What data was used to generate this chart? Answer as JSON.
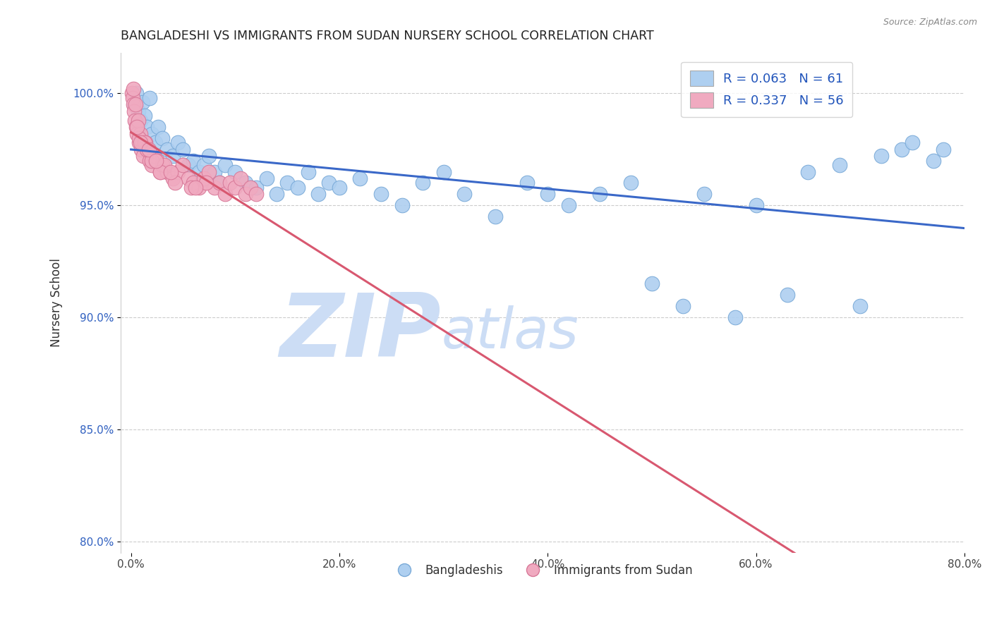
{
  "title": "BANGLADESHI VS IMMIGRANTS FROM SUDAN NURSERY SCHOOL CORRELATION CHART",
  "source": "Source: ZipAtlas.com",
  "xlabel_vals": [
    0.0,
    20.0,
    40.0,
    60.0,
    80.0
  ],
  "ylabel_vals": [
    80.0,
    85.0,
    90.0,
    95.0,
    100.0
  ],
  "xlim": [
    -1.0,
    80.0
  ],
  "ylim": [
    79.5,
    101.8
  ],
  "blue_R": 0.063,
  "blue_N": 61,
  "pink_R": 0.337,
  "pink_N": 56,
  "blue_color": "#aecff0",
  "pink_color": "#f0aac0",
  "blue_edge": "#7aaad8",
  "pink_edge": "#d87898",
  "trendline_blue": "#3a68c8",
  "trendline_pink": "#d85870",
  "watermark_zip": "ZIP",
  "watermark_atlas": "atlas",
  "watermark_color": "#ccddf5",
  "ylabel": "Nursery School",
  "legend_label_blue": "Bangladeshis",
  "legend_label_pink": "Immigrants from Sudan",
  "blue_x": [
    0.3,
    0.5,
    0.7,
    0.9,
    1.1,
    1.3,
    1.5,
    1.8,
    2.0,
    2.3,
    2.6,
    3.0,
    3.5,
    4.0,
    4.5,
    5.0,
    5.5,
    6.0,
    6.5,
    7.0,
    7.5,
    8.0,
    8.5,
    9.0,
    10.0,
    11.0,
    12.0,
    13.0,
    14.0,
    15.0,
    16.0,
    17.0,
    18.0,
    19.0,
    20.0,
    22.0,
    24.0,
    26.0,
    28.0,
    30.0,
    32.0,
    35.0,
    38.0,
    40.0,
    42.0,
    45.0,
    48.0,
    50.0,
    53.0,
    55.0,
    58.0,
    60.0,
    63.0,
    65.0,
    68.0,
    70.0,
    72.0,
    74.0,
    75.0,
    77.0,
    78.0
  ],
  "blue_y": [
    99.5,
    100.0,
    99.2,
    98.8,
    99.6,
    99.0,
    98.5,
    99.8,
    98.2,
    97.8,
    98.5,
    98.0,
    97.5,
    97.2,
    97.8,
    97.5,
    96.8,
    97.0,
    96.5,
    96.8,
    97.2,
    96.5,
    96.0,
    96.8,
    96.5,
    96.0,
    95.8,
    96.2,
    95.5,
    96.0,
    95.8,
    96.5,
    95.5,
    96.0,
    95.8,
    96.2,
    95.5,
    95.0,
    96.0,
    96.5,
    95.5,
    94.5,
    96.0,
    95.5,
    95.0,
    95.5,
    96.0,
    91.5,
    90.5,
    95.5,
    90.0,
    95.0,
    91.0,
    96.5,
    96.8,
    90.5,
    97.2,
    97.5,
    97.8,
    97.0,
    97.5
  ],
  "pink_x": [
    0.1,
    0.15,
    0.2,
    0.25,
    0.3,
    0.35,
    0.4,
    0.5,
    0.6,
    0.7,
    0.8,
    0.9,
    1.0,
    1.1,
    1.2,
    1.4,
    1.6,
    1.8,
    2.0,
    2.2,
    2.5,
    2.8,
    3.0,
    3.5,
    4.0,
    4.5,
    5.0,
    5.5,
    6.0,
    6.5,
    7.0,
    7.5,
    8.0,
    8.5,
    9.0,
    9.5,
    10.0,
    10.5,
    11.0,
    11.5,
    12.0,
    1.5,
    2.0,
    3.2,
    0.8,
    1.3,
    2.8,
    4.2,
    5.8,
    7.2,
    0.6,
    0.9,
    1.7,
    2.4,
    3.8,
    6.2
  ],
  "pink_y": [
    100.0,
    99.8,
    100.2,
    99.5,
    99.2,
    98.8,
    99.5,
    98.5,
    98.2,
    98.8,
    97.8,
    98.2,
    97.5,
    97.8,
    97.2,
    97.8,
    97.5,
    97.0,
    96.8,
    97.2,
    97.0,
    96.5,
    96.8,
    96.5,
    96.2,
    96.5,
    96.8,
    96.2,
    96.0,
    95.8,
    96.2,
    96.5,
    95.8,
    96.0,
    95.5,
    96.0,
    95.8,
    96.2,
    95.5,
    95.8,
    95.5,
    97.5,
    97.0,
    96.8,
    98.0,
    97.8,
    96.5,
    96.0,
    95.8,
    96.0,
    98.5,
    97.8,
    97.5,
    97.0,
    96.5,
    95.8
  ]
}
